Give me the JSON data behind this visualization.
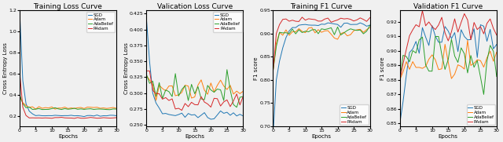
{
  "title1": "Training Loss Curve",
  "title2": "Valication Loss Curve",
  "title3": "Training F1 Curve",
  "title4": "Validation F1 Curve",
  "ylabel1": "Cross Entropy Loss",
  "ylabel2": "Cross Entropy Loss",
  "ylabel3": "F1 score",
  "ylabel4": "F1 score",
  "xlabel": "Epochs",
  "legend_labels": [
    "SGD",
    "Adam",
    "AdaBelief",
    "RAdam"
  ],
  "colors": [
    "#1f77b4",
    "#ff7f0e",
    "#2ca02c",
    "#d62728"
  ],
  "epochs": 30,
  "bg_color": "#f0f0f0"
}
